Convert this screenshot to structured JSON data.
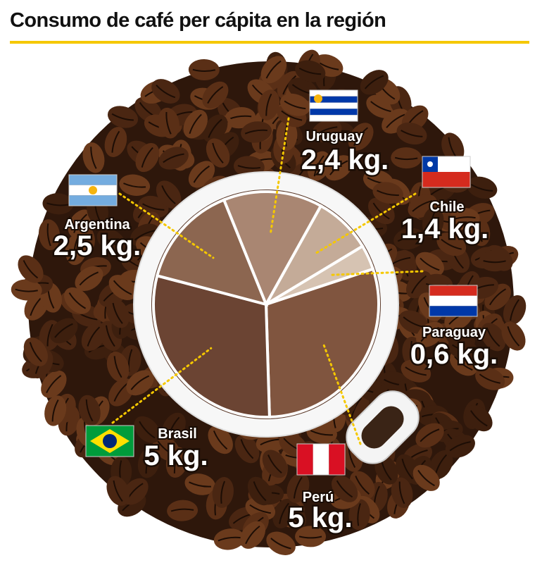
{
  "chart_data": {
    "type": "pie",
    "title": "Consumo de café per cápita en la región",
    "categories": [
      "Uruguay",
      "Chile",
      "Paraguay",
      "Perú",
      "Brasil",
      "Argentina"
    ],
    "values": [
      2.4,
      1.4,
      0.6,
      5,
      5,
      2.5
    ],
    "value_labels": [
      "2,4 kg.",
      "1,4 kg.",
      "0,6 kg.",
      "5 kg.",
      "5 kg.",
      "2,5 kg."
    ],
    "colors": [
      "#a98672",
      "#c4ab98",
      "#d6c3b2",
      "#80553f",
      "#6b4433",
      "#8c6650"
    ]
  }
}
